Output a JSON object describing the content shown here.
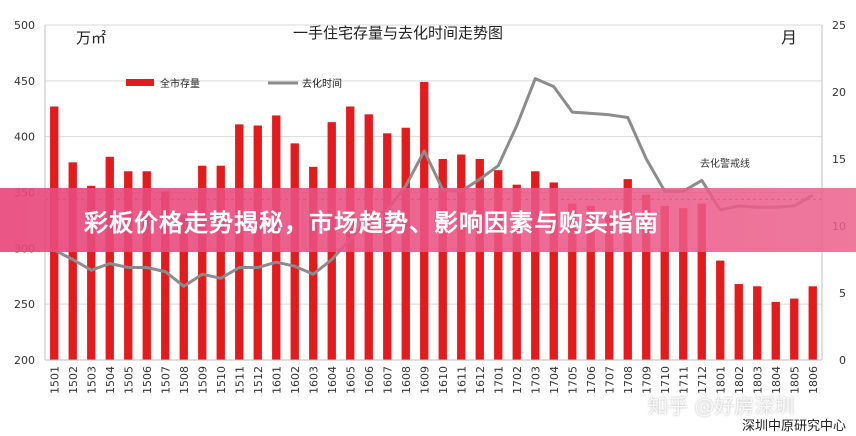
{
  "chart_data": {
    "type": "bar+line",
    "title": "一手住宅存量与去化时间走势图",
    "y_left_unit": "万㎡",
    "y_right_unit": "月",
    "y_left_range": [
      200,
      500
    ],
    "y_left_ticks": [
      200,
      250,
      300,
      350,
      400,
      450,
      500
    ],
    "y_right_range": [
      0,
      25
    ],
    "y_right_ticks": [
      0,
      5,
      10,
      15,
      20,
      25
    ],
    "categories": [
      "1501",
      "1502",
      "1503",
      "1504",
      "1505",
      "1506",
      "1507",
      "1508",
      "1509",
      "1510",
      "1511",
      "1512",
      "1601",
      "1602",
      "1603",
      "1604",
      "1605",
      "1606",
      "1607",
      "1608",
      "1609",
      "1610",
      "1611",
      "1612",
      "1701",
      "1702",
      "1703",
      "1704",
      "1705",
      "1706",
      "1707",
      "1708",
      "1709",
      "1710",
      "1711",
      "1712",
      "1801",
      "1802",
      "1803",
      "1804",
      "1805",
      "1806"
    ],
    "series": [
      {
        "name": "全市存量",
        "type": "bar",
        "axis": "left",
        "color": "#e41a1c",
        "values": [
          427,
          377,
          356,
          382,
          369,
          369,
          351,
          330,
          374,
          374,
          411,
          410,
          419,
          394,
          373,
          413,
          427,
          420,
          403,
          408,
          449,
          380,
          384,
          380,
          370,
          357,
          369,
          359,
          340,
          338,
          330,
          362,
          348,
          338,
          336,
          340,
          289,
          268,
          266,
          252,
          255,
          266
        ]
      },
      {
        "name": "去化时间",
        "type": "line",
        "axis": "right",
        "color": "#8c8c8c",
        "values": [
          8.2,
          7.5,
          6.7,
          7.2,
          6.9,
          6.9,
          6.6,
          5.5,
          6.4,
          6.1,
          6.9,
          6.9,
          7.3,
          7.0,
          6.4,
          7.5,
          9.0,
          10.6,
          11.2,
          13.0,
          15.6,
          12.7,
          12.6,
          13.5,
          14.5,
          17.5,
          21.0,
          20.4,
          18.5,
          18.4,
          18.3,
          18.1,
          15.0,
          12.6,
          12.6,
          13.4,
          11.2,
          11.5,
          11.4,
          11.4,
          11.5,
          12.3
        ]
      }
    ],
    "warning_line": {
      "label": "去化警戒线",
      "value": 12
    },
    "legend_position": "top-left",
    "grid": "horizontal"
  },
  "banner": {
    "text": "彩板价格走势揭秘，市场趋势、影响因素与购买指南"
  },
  "watermark": {
    "text": "知乎 @好房深圳"
  },
  "source": {
    "text": "深圳中原研究中心"
  }
}
